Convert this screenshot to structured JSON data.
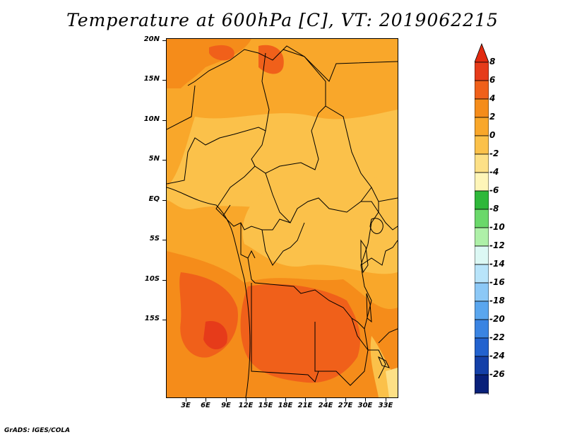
{
  "title": "Temperature at 600hPa [C], VT: 2019062215",
  "credit": "GrADS: IGES/COLA",
  "map": {
    "region": "Central and Southern Africa",
    "variable": "Temperature",
    "level": "600hPa",
    "units": "C",
    "valid_time": "2019062215",
    "lat_labels": [
      "20N",
      "15N",
      "10N",
      "5N",
      "EQ",
      "5S",
      "10S",
      "15S"
    ],
    "lon_labels": [
      "3E",
      "6E",
      "9E",
      "12E",
      "15E",
      "18E",
      "21E",
      "24E",
      "27E",
      "30E",
      "33E"
    ]
  },
  "colorbar": {
    "labels": [
      "8",
      "6",
      "4",
      "2",
      "0",
      "-2",
      "-4",
      "-6",
      "-8",
      "-10",
      "-12",
      "-14",
      "-16",
      "-18",
      "-20",
      "-22",
      "-24",
      "-26"
    ],
    "colors": [
      "#e63b1a",
      "#f0601a",
      "#f58c1a",
      "#f9a72a",
      "#fbc14a",
      "#fde086",
      "#fef5b8",
      "#2fb83a",
      "#6ad86a",
      "#aef0a8",
      "#dcf8f4",
      "#b8e4fa",
      "#8cc8f6",
      "#5aa6ee",
      "#3a84e2",
      "#2262cf",
      "#1440a8",
      "#08207a"
    ],
    "top_triangle_color": "#e22a10",
    "bottom_triangle_color": "#dcdcf6"
  }
}
